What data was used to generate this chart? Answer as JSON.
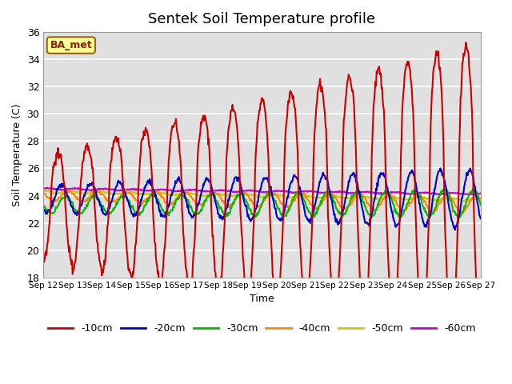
{
  "title": "Sentek Soil Temperature profile",
  "xlabel": "Time",
  "ylabel": "Soil Temperature (C)",
  "ylim": [
    18,
    36
  ],
  "yticks": [
    18,
    20,
    22,
    24,
    26,
    28,
    30,
    32,
    34,
    36
  ],
  "bg_color": "#e0e0e0",
  "fig_color": "#ffffff",
  "annotation_text": "BA_met",
  "annotation_bg": "#ffff99",
  "annotation_border": "#996600",
  "series_colors": {
    "-10cm": "#cc0000",
    "-20cm": "#0000cc",
    "-30cm": "#00bb00",
    "-40cm": "#ff8800",
    "-50cm": "#cccc00",
    "-60cm": "#cc00cc"
  },
  "series_lw": {
    "-10cm": 1.5,
    "-20cm": 1.5,
    "-30cm": 1.5,
    "-40cm": 1.5,
    "-50cm": 1.5,
    "-60cm": 1.5
  },
  "n_points": 720,
  "start_day": 12,
  "end_day": 27
}
